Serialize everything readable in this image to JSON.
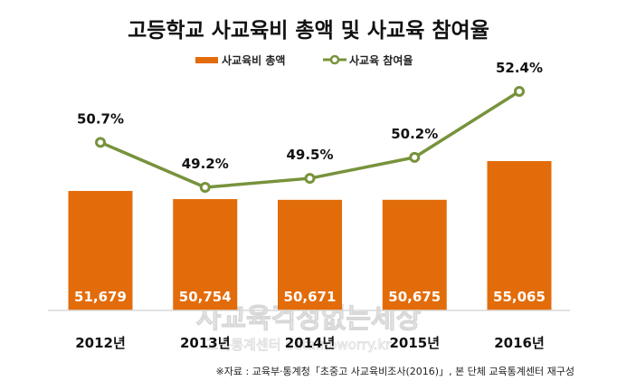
{
  "colors": {
    "bar": "#e36c0a",
    "line": "#77933c",
    "axis": "#d9d9d9"
  },
  "watermark": {
    "line1": "사교육걱정없는세상",
    "line2": "교육통계센터 data.noworry.kr"
  },
  "chart_data": {
    "type": "bar+line",
    "title": "고등학교 사교육비 총액 및 사교육 참여율",
    "categories": [
      "2012년",
      "2013년",
      "2014년",
      "2015년",
      "2016년"
    ],
    "series": [
      {
        "name": "사교육비 총액",
        "type": "bar",
        "axis": "left",
        "values": [
          51679,
          50754,
          50671,
          50675,
          55065
        ],
        "labels": [
          "51,679",
          "50,754",
          "50,671",
          "50,675",
          "55,065"
        ]
      },
      {
        "name": "사교육 참여율",
        "type": "line",
        "axis": "right",
        "values": [
          50.7,
          49.2,
          49.5,
          50.2,
          52.4
        ],
        "labels": [
          "50.7%",
          "49.2%",
          "49.5%",
          "50.2%",
          "52.4%"
        ]
      }
    ],
    "ylim_left": [
      38135,
      55065
    ],
    "ylim_right": [
      49.2,
      52.4
    ],
    "grid": false,
    "legend": "top-center",
    "xlabel": "",
    "ylabel": "",
    "source": "※자료 : 교육부·통계청「초중고 사교육비조사(2016)」, 본 단체 교육통계센터 재구성"
  }
}
